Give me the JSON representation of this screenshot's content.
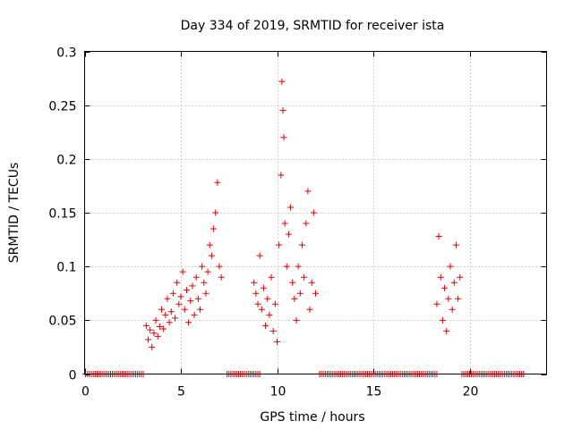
{
  "chart_data": {
    "type": "scatter",
    "title": "Day 334 of 2019, SRMTID for receiver ista",
    "xlabel": "GPS time / hours",
    "ylabel": "SRMTID / TECUs",
    "xlim": [
      0,
      24
    ],
    "ylim": [
      0,
      0.3
    ],
    "x_ticks": [
      0,
      5,
      10,
      15,
      20
    ],
    "y_ticks": [
      0,
      0.05,
      0.1,
      0.15,
      0.2,
      0.25,
      0.3
    ],
    "x_tick_labels": [
      "0",
      "5",
      "10",
      "15",
      "20"
    ],
    "y_tick_labels": [
      "0",
      "0.05",
      "0.1",
      "0.15",
      "0.2",
      "0.25",
      "0.3"
    ],
    "grid": true,
    "marker": "plus",
    "color": "#e00000",
    "zero_ranges": [
      [
        0.05,
        3.1
      ],
      [
        7.4,
        9.1
      ],
      [
        12.2,
        18.3
      ],
      [
        19.6,
        22.8
      ]
    ],
    "series": [
      {
        "values": [
          [
            3.2,
            0.045
          ],
          [
            3.3,
            0.032
          ],
          [
            3.4,
            0.041
          ],
          [
            3.5,
            0.025
          ],
          [
            3.6,
            0.038
          ],
          [
            3.7,
            0.05
          ],
          [
            3.8,
            0.035
          ],
          [
            3.9,
            0.044
          ],
          [
            4.0,
            0.06
          ],
          [
            4.1,
            0.042
          ],
          [
            4.2,
            0.055
          ],
          [
            4.3,
            0.07
          ],
          [
            4.4,
            0.048
          ],
          [
            4.5,
            0.058
          ],
          [
            4.6,
            0.075
          ],
          [
            4.7,
            0.052
          ],
          [
            4.8,
            0.085
          ],
          [
            4.9,
            0.065
          ],
          [
            5.0,
            0.072
          ],
          [
            5.1,
            0.095
          ],
          [
            5.2,
            0.06
          ],
          [
            5.3,
            0.078
          ],
          [
            5.4,
            0.048
          ],
          [
            5.5,
            0.068
          ],
          [
            5.6,
            0.082
          ],
          [
            5.7,
            0.055
          ],
          [
            5.8,
            0.09
          ],
          [
            5.9,
            0.07
          ],
          [
            6.0,
            0.06
          ],
          [
            6.1,
            0.1
          ],
          [
            6.2,
            0.085
          ],
          [
            6.3,
            0.075
          ],
          [
            6.4,
            0.095
          ],
          [
            6.5,
            0.12
          ],
          [
            6.6,
            0.11
          ],
          [
            6.7,
            0.135
          ],
          [
            6.8,
            0.15
          ],
          [
            6.9,
            0.178
          ],
          [
            7.0,
            0.1
          ],
          [
            7.1,
            0.09
          ],
          [
            8.8,
            0.085
          ],
          [
            8.9,
            0.075
          ],
          [
            9.0,
            0.065
          ],
          [
            9.1,
            0.11
          ],
          [
            9.2,
            0.06
          ],
          [
            9.3,
            0.08
          ],
          [
            9.4,
            0.045
          ],
          [
            9.5,
            0.07
          ],
          [
            9.6,
            0.055
          ],
          [
            9.7,
            0.09
          ],
          [
            9.8,
            0.04
          ],
          [
            9.9,
            0.065
          ],
          [
            10.0,
            0.03
          ],
          [
            10.1,
            0.12
          ],
          [
            10.2,
            0.185
          ],
          [
            10.25,
            0.272
          ],
          [
            10.3,
            0.245
          ],
          [
            10.35,
            0.22
          ],
          [
            10.4,
            0.14
          ],
          [
            10.5,
            0.1
          ],
          [
            10.6,
            0.13
          ],
          [
            10.7,
            0.155
          ],
          [
            10.8,
            0.085
          ],
          [
            10.9,
            0.07
          ],
          [
            11.0,
            0.05
          ],
          [
            11.1,
            0.1
          ],
          [
            11.2,
            0.075
          ],
          [
            11.3,
            0.12
          ],
          [
            11.4,
            0.09
          ],
          [
            11.5,
            0.14
          ],
          [
            11.6,
            0.17
          ],
          [
            11.7,
            0.06
          ],
          [
            11.8,
            0.085
          ],
          [
            11.9,
            0.15
          ],
          [
            12.0,
            0.075
          ],
          [
            18.3,
            0.065
          ],
          [
            18.4,
            0.128
          ],
          [
            18.5,
            0.09
          ],
          [
            18.6,
            0.05
          ],
          [
            18.7,
            0.08
          ],
          [
            18.8,
            0.04
          ],
          [
            18.9,
            0.07
          ],
          [
            19.0,
            0.1
          ],
          [
            19.1,
            0.06
          ],
          [
            19.2,
            0.085
          ],
          [
            19.3,
            0.12
          ],
          [
            19.4,
            0.07
          ],
          [
            19.5,
            0.09
          ]
        ]
      }
    ]
  }
}
